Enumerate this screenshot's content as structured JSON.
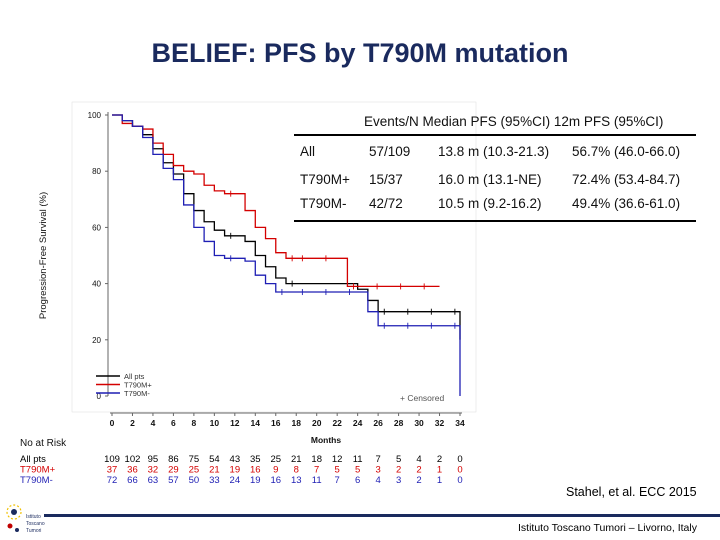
{
  "slide": {
    "title": "BELIEF: PFS by T790M mutation",
    "citation": "Stahel, et al. ECC 2015",
    "footer": "Istituto Toscano Tumori – Livorno, Italy",
    "logo_text": [
      "Istituto",
      "Toscano",
      "Tumori"
    ]
  },
  "table": {
    "header": "Events/N  Median PFS (95%CI)  12m PFS (95%CI)",
    "rows": [
      {
        "group": "All",
        "events": "57/109",
        "median": "13.8 m (10.3-21.3)",
        "m12": "56.7% (46.0-66.0)",
        "color": "#000000"
      },
      {
        "group": "T790M+",
        "events": "15/37",
        "median": "16.0 m (13.1-NE)",
        "m12": "72.4% (53.4-84.7)",
        "color": "#000000"
      },
      {
        "group": "T790M-",
        "events": "42/72",
        "median": "10.5 m (9.2-16.2)",
        "m12": "49.4% (36.6-61.0)",
        "color": "#000000"
      }
    ]
  },
  "chart_data": {
    "type": "line",
    "subtype": "kaplan-meier",
    "ylabel": "Progression-Free Survival (%)",
    "xlabel": "Months",
    "xlim": [
      0,
      34
    ],
    "ylim": [
      0,
      100
    ],
    "x_ticks": [
      "0",
      "2",
      "4",
      "6",
      "8",
      "10",
      "12",
      "14",
      "16",
      "18",
      "20",
      "22",
      "24",
      "26",
      "28",
      "30",
      "32",
      "34"
    ],
    "y_ticks": [
      "100",
      "80",
      "60",
      "40",
      "20",
      "0"
    ],
    "legend": [
      "All pts",
      "T790M+",
      "T790M-"
    ],
    "censored_label": "+ Censored",
    "series": [
      {
        "name": "All pts",
        "color": "#000000",
        "points": [
          [
            0,
            100
          ],
          [
            1,
            98
          ],
          [
            2,
            96
          ],
          [
            3,
            93
          ],
          [
            4,
            88
          ],
          [
            5,
            83
          ],
          [
            6,
            79
          ],
          [
            7,
            72
          ],
          [
            8,
            66
          ],
          [
            9,
            62
          ],
          [
            10,
            59
          ],
          [
            11,
            57
          ],
          [
            12,
            57
          ],
          [
            13,
            55
          ],
          [
            14,
            50
          ],
          [
            15,
            46
          ],
          [
            16,
            42
          ],
          [
            17,
            40
          ],
          [
            18,
            40
          ],
          [
            24,
            38
          ],
          [
            25,
            34
          ],
          [
            26,
            30
          ],
          [
            34,
            30
          ],
          [
            34,
            20
          ]
        ]
      },
      {
        "name": "T790M+",
        "color": "#d40000",
        "points": [
          [
            0,
            100
          ],
          [
            1,
            97
          ],
          [
            2,
            96
          ],
          [
            3,
            95
          ],
          [
            4,
            90
          ],
          [
            5,
            86
          ],
          [
            6,
            82
          ],
          [
            7,
            80
          ],
          [
            8,
            79
          ],
          [
            9,
            75
          ],
          [
            10,
            73
          ],
          [
            11,
            72
          ],
          [
            12,
            72
          ],
          [
            13,
            66
          ],
          [
            14,
            60
          ],
          [
            15,
            56
          ],
          [
            16,
            51
          ],
          [
            17,
            49
          ],
          [
            18,
            49
          ],
          [
            22,
            49
          ],
          [
            23,
            39
          ],
          [
            32,
            39
          ]
        ]
      },
      {
        "name": "T790M-",
        "color": "#1f1fb4",
        "points": [
          [
            0,
            100
          ],
          [
            1,
            98
          ],
          [
            2,
            96
          ],
          [
            3,
            92
          ],
          [
            4,
            86
          ],
          [
            5,
            81
          ],
          [
            6,
            77
          ],
          [
            7,
            68
          ],
          [
            8,
            60
          ],
          [
            9,
            55
          ],
          [
            10,
            50
          ],
          [
            11,
            49
          ],
          [
            12,
            49
          ],
          [
            13,
            48
          ],
          [
            14,
            43
          ],
          [
            15,
            40
          ],
          [
            16,
            37
          ],
          [
            18,
            37
          ],
          [
            24,
            37
          ],
          [
            25,
            30
          ],
          [
            26,
            25
          ],
          [
            34,
            25
          ],
          [
            34,
            0
          ]
        ]
      }
    ],
    "at_risk": {
      "title": "No at Risk",
      "rows": [
        {
          "label": "All pts",
          "color": "#000000",
          "values": [
            "109",
            "102",
            "95",
            "86",
            "75",
            "54",
            "43",
            "35",
            "25",
            "21",
            "18",
            "12",
            "11",
            "7",
            "5",
            "4",
            "2",
            "0"
          ]
        },
        {
          "label": "T790M+",
          "color": "#d40000",
          "values": [
            "37",
            "36",
            "32",
            "29",
            "25",
            "21",
            "19",
            "16",
            "9",
            "8",
            "7",
            "5",
            "5",
            "3",
            "2",
            "2",
            "1",
            "0"
          ]
        },
        {
          "label": "T790M-",
          "color": "#1f1fb4",
          "values": [
            "72",
            "66",
            "63",
            "57",
            "50",
            "33",
            "24",
            "19",
            "16",
            "13",
            "11",
            "7",
            "6",
            "4",
            "3",
            "2",
            "1",
            "0"
          ]
        }
      ]
    }
  }
}
